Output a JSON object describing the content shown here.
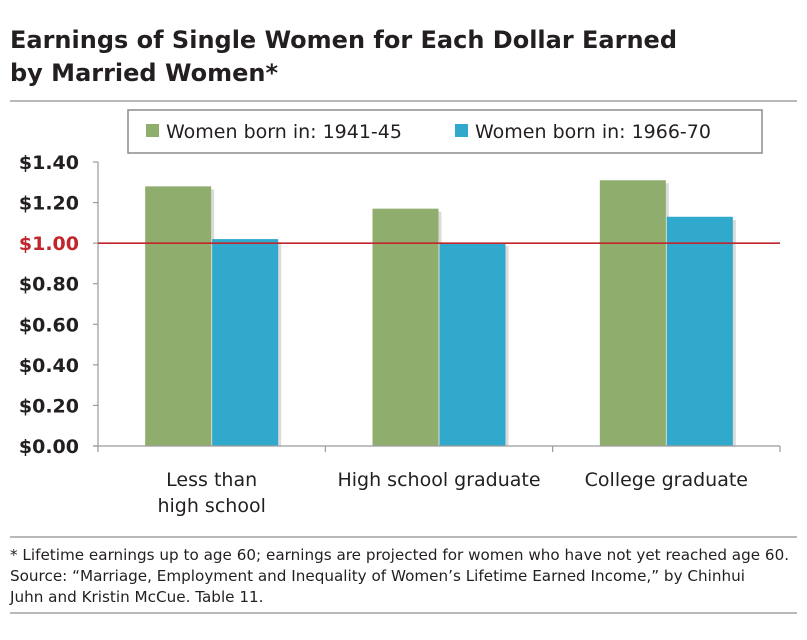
{
  "title": {
    "line1": "Earnings of Single Women for Each Dollar Earned",
    "line2": "by Married Women*"
  },
  "footnote": {
    "note": "* Lifetime earnings up to age 60; earnings are projected for women who have not yet reached age 60.",
    "source_line1": "Source: “Marriage, Employment and Inequality of Women’s Lifetime Earned Income,” by Chinhui",
    "source_line2": "Juhn and Kristin McCue. Table 11."
  },
  "colors": {
    "series1": "#8fae6d",
    "series2": "#31a9cc",
    "reference_line": "#c0262c",
    "reference_label": "#c0262c",
    "axis_text": "#231f20"
  },
  "chart_data": {
    "type": "bar",
    "categories": [
      [
        "Less than",
        "high school"
      ],
      [
        "High school graduate"
      ],
      [
        "College graduate"
      ]
    ],
    "series": [
      {
        "name": "Women born in: 1941-45",
        "values": [
          1.28,
          1.17,
          1.31
        ]
      },
      {
        "name": "Women born in: 1966-70",
        "values": [
          1.02,
          1.0,
          1.13
        ]
      }
    ],
    "yticks": [
      "$0.00",
      "$0.20",
      "$0.40",
      "$0.60",
      "$0.80",
      "$1.00",
      "$1.20",
      "$1.40"
    ],
    "ylim": [
      0,
      1.4
    ],
    "reference_value": 1.0,
    "legend_position": "top",
    "grid": false
  }
}
